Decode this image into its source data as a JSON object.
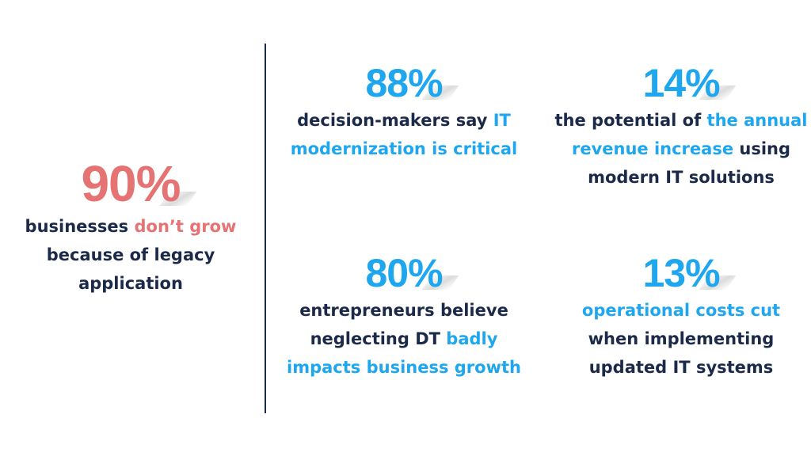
{
  "left": {
    "value": "90%",
    "desc_pre": "businesses ",
    "desc_hl": "don’t grow",
    "desc_post": " because of legacy application"
  },
  "stats": [
    {
      "value": "88%",
      "desc_pre": "decision-makers say ",
      "desc_hl": "IT modernization is critical",
      "desc_post": ""
    },
    {
      "value": "14%",
      "desc_pre": "the potential of ",
      "desc_hl": "the annual revenue increase",
      "desc_post": " using modern IT solutions"
    },
    {
      "value": "80%",
      "desc_pre": "entrepreneurs believe neglecting DT ",
      "desc_hl": "badly impacts business growth",
      "desc_post": ""
    },
    {
      "value": "13%",
      "desc_pre": "",
      "desc_hl": "operational costs cut",
      "desc_post": " when implementing updated IT systems"
    }
  ],
  "colors": {
    "navy": "#1c2a4a",
    "blue": "#1ea7ee",
    "coral": "#e67373"
  }
}
